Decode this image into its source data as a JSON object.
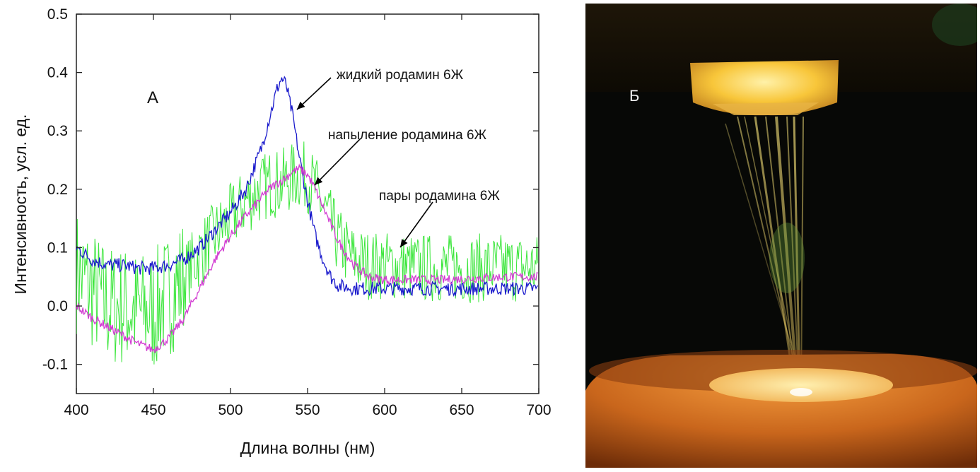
{
  "chart_data": {
    "type": "line",
    "panel_label": "A",
    "xlabel": "Длина волны (нм)",
    "ylabel": "Интенсивность, усл. ед.",
    "xlim": [
      400,
      700
    ],
    "ylim": [
      -0.15,
      0.5
    ],
    "xticks": [
      400,
      450,
      500,
      550,
      600,
      650,
      700
    ],
    "xtick_labels": [
      "400",
      "450",
      "500",
      "550",
      "600",
      "650",
      "700"
    ],
    "yticks": [
      -0.1,
      0.0,
      0.1,
      0.2,
      0.3,
      0.4,
      0.5
    ],
    "ytick_labels": [
      "-0.1",
      "0.0",
      "0.1",
      "0.2",
      "0.3",
      "0.4",
      "0.5"
    ],
    "x": [
      400,
      410,
      420,
      430,
      440,
      450,
      460,
      470,
      480,
      490,
      500,
      510,
      520,
      525,
      530,
      533,
      536,
      540,
      545,
      550,
      555,
      560,
      565,
      570,
      580,
      590,
      600,
      620,
      640,
      660,
      680,
      700
    ],
    "series": [
      {
        "name": "жидкий родамин 6Ж",
        "color": "#1a1acc",
        "noise": 0.012,
        "values": [
          0.1,
          0.08,
          0.07,
          0.07,
          0.065,
          0.065,
          0.07,
          0.08,
          0.1,
          0.13,
          0.16,
          0.2,
          0.27,
          0.32,
          0.37,
          0.39,
          0.38,
          0.33,
          0.25,
          0.18,
          0.12,
          0.08,
          0.05,
          0.035,
          0.03,
          0.03,
          0.03,
          0.03,
          0.03,
          0.03,
          0.03,
          0.03
        ]
      },
      {
        "name": "напыление родамина 6Ж",
        "color": "#d23cd2",
        "noise": 0.008,
        "values": [
          0.0,
          -0.02,
          -0.035,
          -0.05,
          -0.065,
          -0.075,
          -0.055,
          -0.02,
          0.03,
          0.08,
          0.12,
          0.155,
          0.185,
          0.2,
          0.21,
          0.215,
          0.22,
          0.23,
          0.235,
          0.225,
          0.2,
          0.17,
          0.14,
          0.11,
          0.07,
          0.05,
          0.045,
          0.045,
          0.045,
          0.048,
          0.05,
          0.05
        ]
      },
      {
        "name": "пары родамина 6Ж",
        "color": "#3ce63c",
        "noise": 0.06,
        "values": [
          0.06,
          0.03,
          0.0,
          0.0,
          -0.01,
          -0.01,
          0.02,
          0.05,
          0.09,
          0.12,
          0.15,
          0.18,
          0.2,
          0.21,
          0.21,
          0.21,
          0.215,
          0.22,
          0.225,
          0.22,
          0.2,
          0.17,
          0.14,
          0.11,
          0.08,
          0.07,
          0.07,
          0.065,
          0.065,
          0.065,
          0.065,
          0.065
        ]
      }
    ],
    "annotations": [
      {
        "text": "жидкий родамин 6Ж",
        "series": 0
      },
      {
        "text": "напыление родамина 6Ж",
        "series": 1
      },
      {
        "text": "пары родамина 6Ж",
        "series": 2
      }
    ]
  },
  "photo": {
    "label": "Б",
    "colors": {
      "background": "#070806",
      "glow": "#f7c23a",
      "base": "#c8641a",
      "rim": "#ffb347"
    }
  }
}
